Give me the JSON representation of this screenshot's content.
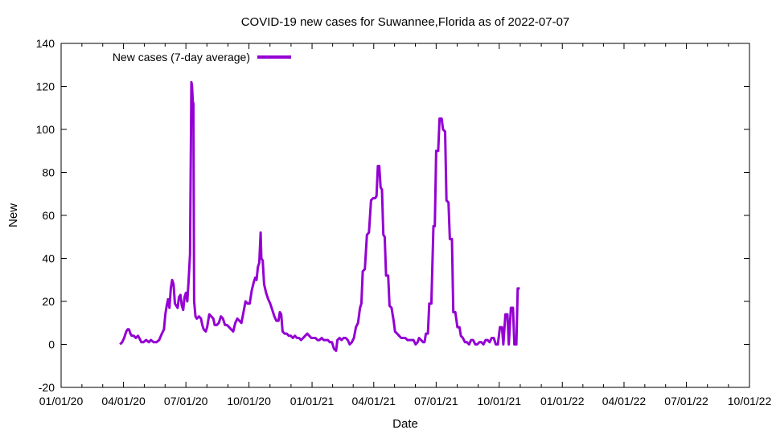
{
  "chart_data": {
    "type": "line",
    "title": "COVID-19 new cases for Suwannee,Florida as of 2022-07-07",
    "xlabel": "Date",
    "ylabel": "New",
    "ylim": [
      -20,
      140
    ],
    "yticks": [
      -20,
      0,
      20,
      40,
      60,
      80,
      100,
      120,
      140
    ],
    "xlim": [
      "2020-01-01",
      "2022-10-01"
    ],
    "xticks": [
      "01/01/20",
      "04/01/20",
      "07/01/20",
      "10/01/20",
      "01/01/21",
      "04/01/21",
      "07/01/21",
      "10/01/21",
      "01/01/22",
      "04/01/22",
      "07/01/22",
      "10/01/22"
    ],
    "xtick_days": [
      0,
      91,
      182,
      274,
      366,
      456,
      547,
      639,
      731,
      821,
      912,
      1004
    ],
    "grid": false,
    "legend_position": "top-left",
    "colors": {
      "series": "#9400d3",
      "axis": "#000000",
      "background": "#ffffff"
    },
    "series": [
      {
        "name": "New cases (7-day average)",
        "x_unit": "days since 2020-01-01",
        "points": [
          [
            86,
            0
          ],
          [
            89,
            1
          ],
          [
            92,
            3
          ],
          [
            95,
            6
          ],
          [
            97,
            7
          ],
          [
            99,
            7
          ],
          [
            101,
            5
          ],
          [
            103,
            4
          ],
          [
            106,
            4
          ],
          [
            109,
            3
          ],
          [
            112,
            4
          ],
          [
            114,
            3
          ],
          [
            117,
            1
          ],
          [
            120,
            1
          ],
          [
            124,
            2
          ],
          [
            128,
            1
          ],
          [
            131,
            2
          ],
          [
            135,
            1
          ],
          [
            139,
            1
          ],
          [
            143,
            2
          ],
          [
            147,
            5
          ],
          [
            150,
            7
          ],
          [
            152,
            14
          ],
          [
            154,
            18
          ],
          [
            156,
            21
          ],
          [
            158,
            17
          ],
          [
            160,
            26
          ],
          [
            162,
            30
          ],
          [
            164,
            28
          ],
          [
            166,
            19
          ],
          [
            168,
            18
          ],
          [
            170,
            17
          ],
          [
            172,
            22
          ],
          [
            174,
            23
          ],
          [
            176,
            18
          ],
          [
            178,
            16
          ],
          [
            180,
            22
          ],
          [
            182,
            24
          ],
          [
            184,
            20
          ],
          [
            186,
            30
          ],
          [
            188,
            42
          ],
          [
            190,
            122
          ],
          [
            191,
            120
          ],
          [
            192,
            113
          ],
          [
            193,
            112
          ],
          [
            194,
            20
          ],
          [
            196,
            13
          ],
          [
            198,
            12
          ],
          [
            201,
            13
          ],
          [
            204,
            12
          ],
          [
            206,
            9
          ],
          [
            208,
            7
          ],
          [
            211,
            6
          ],
          [
            213,
            8
          ],
          [
            216,
            14
          ],
          [
            219,
            13
          ],
          [
            222,
            12
          ],
          [
            224,
            9
          ],
          [
            227,
            9
          ],
          [
            230,
            10
          ],
          [
            233,
            13
          ],
          [
            236,
            12
          ],
          [
            239,
            9
          ],
          [
            242,
            9
          ],
          [
            245,
            8
          ],
          [
            248,
            7
          ],
          [
            251,
            6
          ],
          [
            254,
            10
          ],
          [
            257,
            12
          ],
          [
            260,
            11
          ],
          [
            263,
            10
          ],
          [
            266,
            15
          ],
          [
            269,
            20
          ],
          [
            272,
            19
          ],
          [
            275,
            19
          ],
          [
            278,
            25
          ],
          [
            281,
            29
          ],
          [
            283,
            31
          ],
          [
            285,
            30
          ],
          [
            287,
            36
          ],
          [
            289,
            38
          ],
          [
            291,
            52
          ],
          [
            292,
            40
          ],
          [
            294,
            39
          ],
          [
            296,
            28
          ],
          [
            299,
            24
          ],
          [
            302,
            21
          ],
          [
            305,
            19
          ],
          [
            308,
            16
          ],
          [
            311,
            13
          ],
          [
            314,
            11
          ],
          [
            317,
            11
          ],
          [
            319,
            15
          ],
          [
            321,
            14
          ],
          [
            323,
            6
          ],
          [
            326,
            5
          ],
          [
            329,
            5
          ],
          [
            332,
            4
          ],
          [
            335,
            4
          ],
          [
            338,
            3
          ],
          [
            341,
            4
          ],
          [
            344,
            3
          ],
          [
            347,
            3
          ],
          [
            350,
            2
          ],
          [
            353,
            3
          ],
          [
            356,
            4
          ],
          [
            359,
            5
          ],
          [
            362,
            4
          ],
          [
            365,
            3
          ],
          [
            368,
            3
          ],
          [
            371,
            3
          ],
          [
            374,
            2
          ],
          [
            377,
            2
          ],
          [
            380,
            3
          ],
          [
            383,
            2
          ],
          [
            386,
            2
          ],
          [
            389,
            2
          ],
          [
            392,
            1
          ],
          [
            395,
            1
          ],
          [
            398,
            -2
          ],
          [
            401,
            -3
          ],
          [
            403,
            2
          ],
          [
            406,
            3
          ],
          [
            409,
            2
          ],
          [
            412,
            3
          ],
          [
            415,
            3
          ],
          [
            418,
            2
          ],
          [
            421,
            0
          ],
          [
            424,
            1
          ],
          [
            427,
            3
          ],
          [
            430,
            8
          ],
          [
            433,
            10
          ],
          [
            436,
            17
          ],
          [
            438,
            19
          ],
          [
            440,
            34
          ],
          [
            443,
            35
          ],
          [
            446,
            51
          ],
          [
            449,
            52
          ],
          [
            452,
            67
          ],
          [
            455,
            68
          ],
          [
            458,
            68
          ],
          [
            460,
            69
          ],
          [
            462,
            83
          ],
          [
            464,
            83
          ],
          [
            466,
            73
          ],
          [
            468,
            72
          ],
          [
            470,
            51
          ],
          [
            472,
            50
          ],
          [
            474,
            32
          ],
          [
            477,
            32
          ],
          [
            479,
            18
          ],
          [
            482,
            17
          ],
          [
            485,
            11
          ],
          [
            487,
            6
          ],
          [
            490,
            5
          ],
          [
            493,
            4
          ],
          [
            496,
            3
          ],
          [
            499,
            3
          ],
          [
            502,
            3
          ],
          [
            505,
            2
          ],
          [
            508,
            2
          ],
          [
            511,
            2
          ],
          [
            514,
            2
          ],
          [
            517,
            0
          ],
          [
            520,
            1
          ],
          [
            522,
            3
          ],
          [
            525,
            2
          ],
          [
            528,
            1
          ],
          [
            530,
            1
          ],
          [
            532,
            5
          ],
          [
            535,
            5
          ],
          [
            537,
            19
          ],
          [
            540,
            19
          ],
          [
            543,
            55
          ],
          [
            545,
            55
          ],
          [
            547,
            90
          ],
          [
            550,
            90
          ],
          [
            552,
            105
          ],
          [
            555,
            105
          ],
          [
            557,
            100
          ],
          [
            560,
            99
          ],
          [
            562,
            67
          ],
          [
            565,
            66
          ],
          [
            567,
            49
          ],
          [
            570,
            49
          ],
          [
            572,
            15
          ],
          [
            575,
            15
          ],
          [
            578,
            8
          ],
          [
            581,
            8
          ],
          [
            583,
            4
          ],
          [
            586,
            3
          ],
          [
            589,
            1
          ],
          [
            592,
            1
          ],
          [
            595,
            0
          ],
          [
            598,
            2
          ],
          [
            601,
            2
          ],
          [
            604,
            0
          ],
          [
            607,
            0
          ],
          [
            610,
            1
          ],
          [
            613,
            1
          ],
          [
            616,
            0
          ],
          [
            619,
            2
          ],
          [
            622,
            2
          ],
          [
            625,
            1
          ],
          [
            628,
            3
          ],
          [
            631,
            3
          ],
          [
            634,
            0
          ],
          [
            637,
            0
          ],
          [
            640,
            8
          ],
          [
            643,
            8
          ],
          [
            645,
            0
          ],
          [
            648,
            14
          ],
          [
            651,
            14
          ],
          [
            653,
            0
          ],
          [
            656,
            17
          ],
          [
            659,
            17
          ],
          [
            661,
            0
          ],
          [
            664,
            0
          ],
          [
            666,
            26
          ],
          [
            669,
            26
          ]
        ]
      }
    ]
  }
}
